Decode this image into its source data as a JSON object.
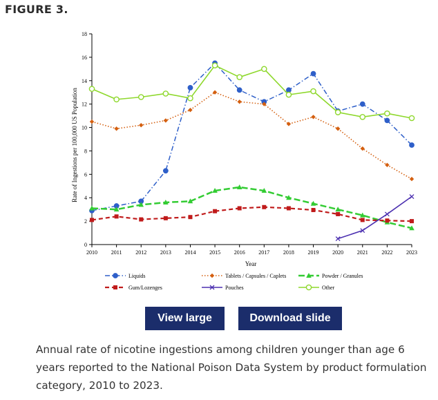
{
  "figure_label": "FIGURE 3.",
  "buttons": {
    "view_large": "View large",
    "download_slide": "Download slide"
  },
  "caption": "Annual rate of nicotine ingestions among children younger than age 6 years reported to the National Poison Data System by product formulation category, 2010 to 2023.",
  "chart_data": {
    "type": "line",
    "title": "",
    "xlabel": "Year",
    "ylabel": "Rate of Ingestions per 100,000 US Population",
    "x": [
      2010,
      2011,
      2012,
      2013,
      2014,
      2015,
      2016,
      2017,
      2018,
      2019,
      2020,
      2021,
      2022,
      2023
    ],
    "ylim": [
      0,
      18
    ],
    "yticks": [
      0,
      2,
      4,
      6,
      8,
      10,
      12,
      14,
      16,
      18
    ],
    "grid": false,
    "legend_position": "bottom",
    "series": [
      {
        "name": "Liquids",
        "color": "#2e5fc9",
        "marker": "circle",
        "dash": "dashdot",
        "values": [
          2.9,
          3.3,
          3.7,
          6.3,
          13.4,
          15.5,
          13.2,
          12.2,
          13.2,
          14.6,
          11.4,
          12.0,
          10.6,
          8.5
        ]
      },
      {
        "name": "Tablets / Capsules / Caplets",
        "color": "#d45f0f",
        "marker": "diamond",
        "dash": "dotted",
        "values": [
          10.5,
          9.9,
          10.2,
          10.6,
          11.5,
          13.0,
          12.2,
          12.0,
          10.3,
          10.9,
          9.9,
          8.2,
          6.8,
          5.6
        ]
      },
      {
        "name": "Powder / Granules",
        "color": "#33cc33",
        "marker": "triangle",
        "dash": "dashed",
        "values": [
          3.1,
          3.0,
          3.4,
          3.6,
          3.7,
          4.6,
          4.9,
          4.6,
          4.0,
          3.5,
          3.0,
          2.5,
          1.9,
          1.4
        ]
      },
      {
        "name": "Gum/Lozenges",
        "color": "#c01b1b",
        "marker": "square",
        "dash": "longdash",
        "values": [
          2.1,
          2.4,
          2.15,
          2.25,
          2.35,
          2.85,
          3.1,
          3.2,
          3.1,
          2.95,
          2.6,
          2.1,
          2.05,
          2.0
        ]
      },
      {
        "name": "Pouches",
        "color": "#4b2fb0",
        "marker": "x",
        "dash": "solid",
        "values": [
          null,
          null,
          null,
          null,
          null,
          null,
          null,
          null,
          null,
          null,
          0.5,
          1.2,
          2.6,
          4.1
        ]
      },
      {
        "name": "Other",
        "color": "#8ed82c",
        "marker": "open-circle",
        "dash": "solid",
        "values": [
          13.3,
          12.4,
          12.6,
          12.9,
          12.5,
          15.3,
          14.3,
          15.0,
          12.8,
          13.1,
          11.3,
          10.9,
          11.2,
          10.8
        ]
      }
    ]
  }
}
